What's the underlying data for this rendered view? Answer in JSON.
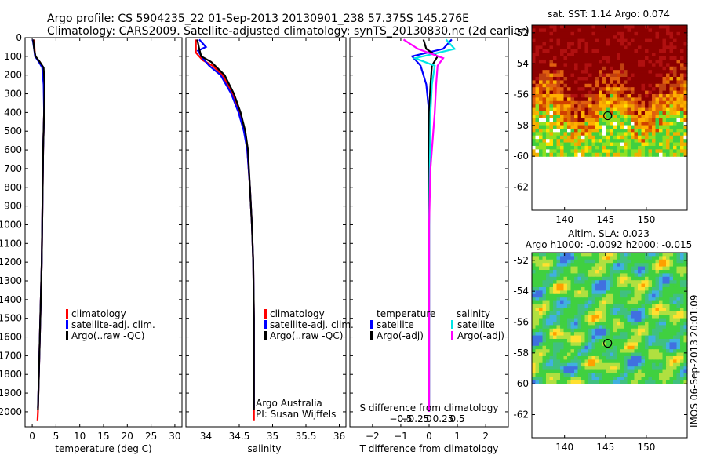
{
  "header": {
    "line1": "Argo profile: CS 5904235_22 01-Sep-2013 20130901_238 57.375S 145.276E",
    "line2": "Climatology: CARS2009. Satellite-adjusted climatology: synTS_20130830.nc (2d earlier)"
  },
  "colors": {
    "climatology": "#ff0000",
    "satellite": "#0000ff",
    "argo": "#000000",
    "sal_satellite": "#00e5e5",
    "sal_argo": "#ff00ff"
  },
  "chart_data": [
    {
      "id": "temperature",
      "type": "line",
      "xlabel": "temperature (deg C)",
      "xlim": [
        -1.5,
        31.5
      ],
      "xticks": [
        0,
        5,
        10,
        15,
        20,
        25,
        30
      ],
      "xticklabels": [
        "0",
        "5",
        "10",
        "15",
        "20",
        "25",
        "30"
      ],
      "ylim": [
        2080,
        0
      ],
      "yticks": [
        0,
        100,
        200,
        300,
        400,
        500,
        600,
        700,
        800,
        900,
        1000,
        1100,
        1200,
        1300,
        1400,
        1500,
        1600,
        1700,
        1800,
        1900,
        2000
      ],
      "yticklabels": [
        "0",
        "100",
        "200",
        "300",
        "400",
        "500",
        "600",
        "700",
        "800",
        "900",
        "1000",
        "1100",
        "1200",
        "1300",
        "1400",
        "1500",
        "1600",
        "1700",
        "1800",
        "1900",
        "2000"
      ],
      "legend": [
        "climatology",
        "satellite-adj. clim.",
        "Argo(..raw -QC)"
      ],
      "series": [
        {
          "name": "climatology",
          "color": "#ff0000",
          "points": [
            [
              0.4,
              10
            ],
            [
              0.5,
              60
            ],
            [
              0.6,
              100
            ],
            [
              1.6,
              130
            ],
            [
              2.3,
              160
            ],
            [
              2.5,
              250
            ],
            [
              2.5,
              400
            ],
            [
              2.3,
              600
            ],
            [
              2.2,
              800
            ],
            [
              2.1,
              1000
            ],
            [
              2.0,
              1200
            ],
            [
              1.8,
              1400
            ],
            [
              1.6,
              1600
            ],
            [
              1.4,
              1800
            ],
            [
              1.2,
              2000
            ],
            [
              1.1,
              2050
            ]
          ]
        },
        {
          "name": "satellite-adj. clim.",
          "color": "#0000ff",
          "points": [
            [
              0.1,
              10
            ],
            [
              0.4,
              60
            ],
            [
              0.6,
              100
            ],
            [
              1.4,
              130
            ],
            [
              2.1,
              160
            ],
            [
              2.4,
              250
            ],
            [
              2.5,
              400
            ],
            [
              2.3,
              600
            ],
            [
              2.2,
              800
            ],
            [
              2.1,
              1000
            ],
            [
              2.0,
              1200
            ],
            [
              1.8,
              1400
            ],
            [
              1.6,
              1600
            ],
            [
              1.4,
              1800
            ],
            [
              1.2,
              1980
            ]
          ]
        },
        {
          "name": "Argo(..raw -QC)",
          "color": "#000000",
          "points": [
            [
              0.2,
              10
            ],
            [
              0.4,
              60
            ],
            [
              0.7,
              100
            ],
            [
              1.6,
              130
            ],
            [
              2.4,
              160
            ],
            [
              2.6,
              250
            ],
            [
              2.5,
              400
            ],
            [
              2.3,
              600
            ],
            [
              2.2,
              800
            ],
            [
              2.1,
              1000
            ],
            [
              2.0,
              1200
            ],
            [
              1.8,
              1400
            ],
            [
              1.6,
              1600
            ],
            [
              1.4,
              1800
            ],
            [
              1.2,
              1990
            ]
          ]
        }
      ]
    },
    {
      "id": "salinity",
      "type": "line",
      "xlabel": "salinity",
      "xlim": [
        33.7,
        36.1
      ],
      "xticks": [
        34,
        34.5,
        35,
        35.5,
        36
      ],
      "xticklabels": [
        "34",
        "34.5",
        "35",
        "35.5",
        "36"
      ],
      "ylim": [
        2080,
        0
      ],
      "yticks": [
        0,
        100,
        200,
        300,
        400,
        500,
        600,
        700,
        800,
        900,
        1000,
        1100,
        1200,
        1300,
        1400,
        1500,
        1600,
        1700,
        1800,
        1900,
        2000
      ],
      "legend": [
        "climatology",
        "satellite-adj. clim.",
        "Argo(..raw -QC)"
      ],
      "annotation": [
        "Argo Australia",
        "PI: Susan Wijffels"
      ],
      "series": [
        {
          "name": "climatology",
          "color": "#ff0000",
          "points": [
            [
              33.85,
              10
            ],
            [
              33.85,
              80
            ],
            [
              33.95,
              120
            ],
            [
              34.1,
              150
            ],
            [
              34.25,
              200
            ],
            [
              34.4,
              300
            ],
            [
              34.5,
              400
            ],
            [
              34.58,
              500
            ],
            [
              34.62,
              600
            ],
            [
              34.66,
              800
            ],
            [
              34.69,
              1000
            ],
            [
              34.71,
              1200
            ],
            [
              34.72,
              1500
            ],
            [
              34.72,
              1800
            ],
            [
              34.72,
              2050
            ]
          ]
        },
        {
          "name": "satellite-adj. clim.",
          "color": "#0000ff",
          "points": [
            [
              33.9,
              10
            ],
            [
              34.0,
              50
            ],
            [
              33.88,
              70
            ],
            [
              33.95,
              110
            ],
            [
              34.05,
              150
            ],
            [
              34.22,
              200
            ],
            [
              34.38,
              300
            ],
            [
              34.49,
              400
            ],
            [
              34.57,
              500
            ],
            [
              34.62,
              600
            ],
            [
              34.66,
              800
            ],
            [
              34.69,
              1000
            ],
            [
              34.71,
              1200
            ],
            [
              34.72,
              1500
            ],
            [
              34.72,
              1800
            ],
            [
              34.72,
              1980
            ]
          ]
        },
        {
          "name": "Argo(..raw -QC)",
          "color": "#000000",
          "points": [
            [
              33.87,
              10
            ],
            [
              33.9,
              60
            ],
            [
              33.93,
              100
            ],
            [
              34.08,
              130
            ],
            [
              34.28,
              200
            ],
            [
              34.42,
              300
            ],
            [
              34.52,
              400
            ],
            [
              34.59,
              500
            ],
            [
              34.63,
              600
            ],
            [
              34.66,
              800
            ],
            [
              34.69,
              1000
            ],
            [
              34.71,
              1200
            ],
            [
              34.72,
              1500
            ],
            [
              34.72,
              1800
            ],
            [
              34.72,
              1990
            ]
          ]
        }
      ]
    },
    {
      "id": "difference",
      "type": "line",
      "xlabel": "T difference from climatology",
      "xlabel2": "S difference from climatology",
      "xlim": [
        -2.8,
        2.8
      ],
      "xticks": [
        -2,
        -1,
        0,
        1,
        2
      ],
      "xticklabels": [
        "−2",
        "−1",
        "0",
        "1",
        "2"
      ],
      "x2ticks": [
        -1,
        -0.5,
        0,
        0.5,
        1
      ],
      "x2ticklabels": [
        "−0.5",
        "−0.25",
        "0",
        "0.25",
        "0.5"
      ],
      "ylim": [
        2080,
        0
      ],
      "yticks": [
        0,
        100,
        200,
        300,
        400,
        500,
        600,
        700,
        800,
        900,
        1000,
        1100,
        1200,
        1300,
        1400,
        1500,
        1600,
        1700,
        1800,
        1900,
        2000
      ],
      "legend_headers": [
        "temperature",
        "salinity"
      ],
      "legend_left": [
        "satellite",
        "Argo(-adj)"
      ],
      "legend_right": [
        "satellite",
        "Argo(-adj)"
      ],
      "series": [
        {
          "name": "T satellite",
          "color": "#0000ff",
          "points": [
            [
              0.8,
              10
            ],
            [
              0.5,
              60
            ],
            [
              -0.6,
              100
            ],
            [
              -0.3,
              150
            ],
            [
              -0.1,
              250
            ],
            [
              0.0,
              400
            ],
            [
              0.0,
              1000
            ],
            [
              0.0,
              2000
            ]
          ]
        },
        {
          "name": "T Argo(-adj)",
          "color": "#000000",
          "points": [
            [
              -0.2,
              10
            ],
            [
              -0.1,
              60
            ],
            [
              0.3,
              100
            ],
            [
              0.1,
              150
            ],
            [
              0.05,
              250
            ],
            [
              0.0,
              400
            ],
            [
              0.0,
              1000
            ],
            [
              0.0,
              2000
            ]
          ]
        },
        {
          "name": "S satellite",
          "color": "#00e5e5",
          "points": [
            [
              0.6,
              10
            ],
            [
              0.9,
              60
            ],
            [
              -0.5,
              110
            ],
            [
              0.2,
              150
            ],
            [
              0.1,
              250
            ],
            [
              0.05,
              400
            ],
            [
              0.0,
              1000
            ],
            [
              0.0,
              2000
            ]
          ]
        },
        {
          "name": "S Argo(-adj)",
          "color": "#ff00ff",
          "points": [
            [
              -0.9,
              10
            ],
            [
              -0.4,
              60
            ],
            [
              0.5,
              110
            ],
            [
              0.3,
              150
            ],
            [
              0.25,
              250
            ],
            [
              0.2,
              400
            ],
            [
              0.05,
              700
            ],
            [
              0.0,
              1000
            ],
            [
              0.0,
              2000
            ]
          ]
        }
      ]
    },
    {
      "id": "sst_map",
      "type": "heatmap",
      "title": "sat. SST: 1.14 Argo: 0.074",
      "xticks": [
        140,
        145,
        150
      ],
      "yticks": [
        -52,
        -54,
        -56,
        -58,
        -60,
        -62
      ],
      "xlim": [
        136,
        155
      ],
      "ylim": [
        -63.5,
        -51.5
      ],
      "data_ylim": [
        -60,
        -51.5
      ],
      "marker": {
        "lon": 145.276,
        "lat": -57.375
      }
    },
    {
      "id": "sla_map",
      "type": "heatmap",
      "title": "Altim. SLA: 0.023",
      "subtitle": "Argo h1000: -0.0092 h2000: -0.015",
      "xticks": [
        140,
        145,
        150
      ],
      "yticks": [
        -52,
        -54,
        -56,
        -58,
        -60,
        -62
      ],
      "xlim": [
        136,
        155
      ],
      "ylim": [
        -63.5,
        -51.5
      ],
      "data_ylim": [
        -60,
        -51.5
      ],
      "marker": {
        "lon": 145.276,
        "lat": -57.375
      }
    }
  ],
  "watermark": "IMOS 06-Sep-2013 20:01:09"
}
